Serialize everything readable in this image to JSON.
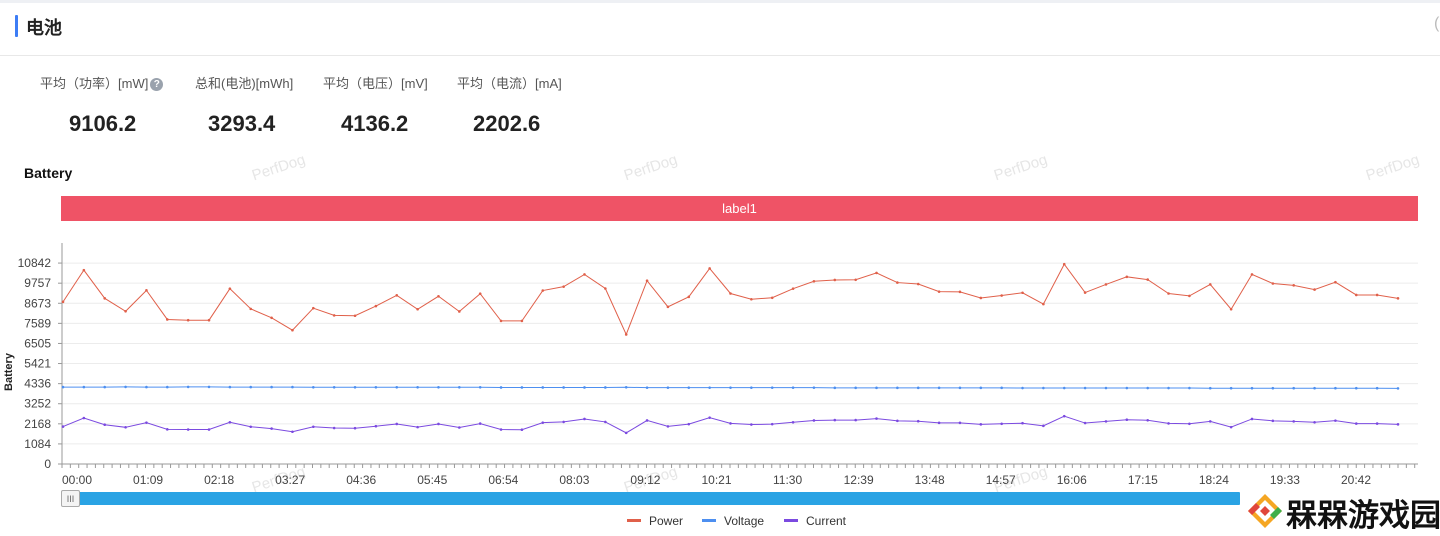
{
  "header": {
    "title": "电池",
    "corner_glyph": "("
  },
  "stats": [
    {
      "label": "平均（功率）[mW]",
      "value": "9106.2",
      "has_help_icon": true
    },
    {
      "label": "总和(电池)[mWh]",
      "value": "3293.4",
      "has_help_icon": false
    },
    {
      "label": "平均（电压）[mV]",
      "value": "4136.2",
      "has_help_icon": false
    },
    {
      "label": "平均（电流）[mA]",
      "value": "2202.6",
      "has_help_icon": false
    }
  ],
  "help_icon": {
    "name": "question-circle-icon",
    "glyph": "?"
  },
  "chart_title": "Battery",
  "banner_label": "label1",
  "watermark": "PerfDog",
  "scrollbar": {
    "handle_glyph": "III"
  },
  "colors": {
    "power": "#e0604a",
    "voltage": "#4d8ff0",
    "current": "#7b4ae0",
    "banner": "#ef5366",
    "scrollbar": "#2aa3e4",
    "accent": "#3d7df5"
  },
  "chart_data": {
    "type": "line",
    "ylabel": "Battery",
    "xlabel": "",
    "yticks": [
      "0",
      "1084",
      "2168",
      "3252",
      "4336",
      "5421",
      "6505",
      "7589",
      "8673",
      "9757",
      "10842"
    ],
    "ylim": [
      0,
      11925
    ],
    "xticks": [
      "00:00",
      "01:09",
      "02:18",
      "03:27",
      "04:36",
      "05:45",
      "06:54",
      "08:03",
      "09:12",
      "10:21",
      "11:30",
      "12:39",
      "13:48",
      "14:57",
      "16:06",
      "17:15",
      "18:24",
      "19:33",
      "20:42"
    ],
    "grid": "horizontal",
    "legend_position": "bottom-center",
    "series": [
      {
        "name": "Power",
        "color": "#e0604a",
        "values": [
          8750,
          10460,
          8940,
          8240,
          9370,
          7800,
          7760,
          7760,
          9460,
          8370,
          7890,
          7220,
          8410,
          8020,
          8000,
          8520,
          9100,
          8350,
          9050,
          8230,
          9190,
          7720,
          7720,
          9360,
          9570,
          10230,
          9470,
          6990,
          9890,
          8480,
          9020,
          10550,
          9200,
          8890,
          8970,
          9460,
          9860,
          9930,
          9940,
          10310,
          9790,
          9710,
          9300,
          9290,
          8960,
          9090,
          9240,
          8630,
          10780,
          9250,
          9690,
          10100,
          9950,
          9200,
          9070,
          9690,
          8350,
          10230,
          9740,
          9640,
          9410,
          9810,
          9120,
          9120,
          8940
        ]
      },
      {
        "name": "Voltage",
        "color": "#4d8ff0",
        "values": [
          4150,
          4150,
          4150,
          4160,
          4150,
          4150,
          4160,
          4160,
          4150,
          4150,
          4150,
          4150,
          4140,
          4140,
          4140,
          4140,
          4140,
          4140,
          4140,
          4140,
          4140,
          4130,
          4130,
          4130,
          4130,
          4130,
          4130,
          4140,
          4120,
          4120,
          4120,
          4120,
          4120,
          4120,
          4120,
          4120,
          4120,
          4110,
          4110,
          4110,
          4110,
          4110,
          4110,
          4110,
          4110,
          4110,
          4100,
          4100,
          4100,
          4100,
          4100,
          4100,
          4100,
          4100,
          4100,
          4090,
          4090,
          4090,
          4090,
          4090,
          4090,
          4090,
          4090,
          4090,
          4080
        ]
      },
      {
        "name": "Current",
        "color": "#7b4ae0",
        "values": [
          2020,
          2480,
          2120,
          1980,
          2230,
          1870,
          1860,
          1860,
          2250,
          2010,
          1910,
          1740,
          2010,
          1940,
          1930,
          2040,
          2160,
          1990,
          2160,
          1970,
          2180,
          1860,
          1850,
          2230,
          2270,
          2430,
          2270,
          1680,
          2350,
          2030,
          2150,
          2500,
          2190,
          2130,
          2150,
          2250,
          2350,
          2370,
          2370,
          2450,
          2330,
          2310,
          2220,
          2220,
          2140,
          2170,
          2200,
          2060,
          2580,
          2210,
          2300,
          2390,
          2360,
          2190,
          2170,
          2300,
          1990,
          2430,
          2330,
          2300,
          2250,
          2340,
          2180,
          2180,
          2140
        ]
      }
    ]
  }
}
